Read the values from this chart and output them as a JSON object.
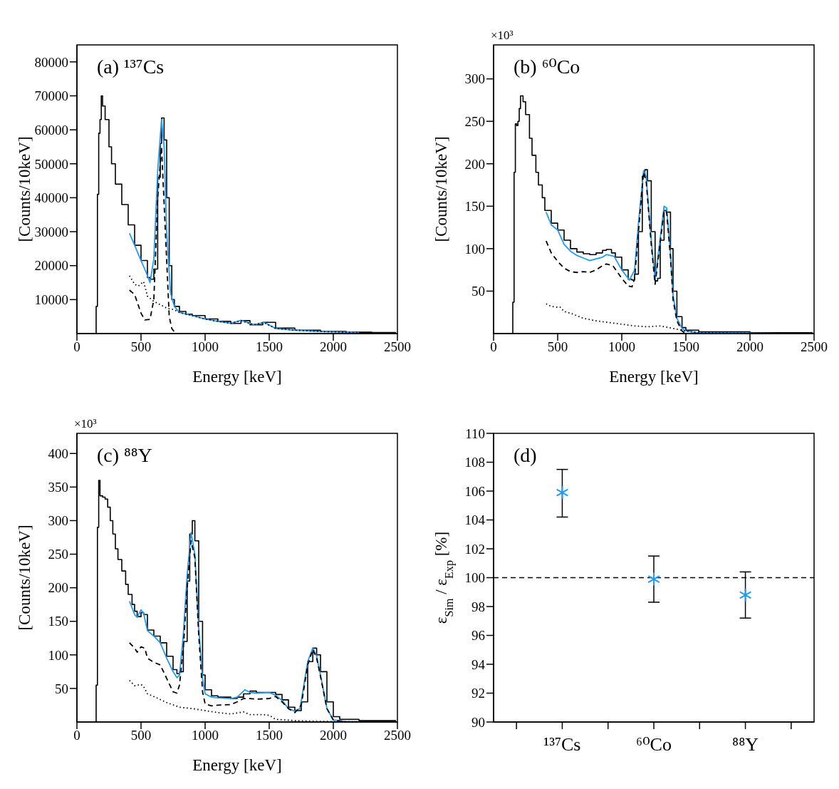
{
  "chart_data": [
    {
      "type": "line",
      "title": "(a) ¹³⁷Cs",
      "xlabel": "Energy  [keV]",
      "ylabel": "[Counts/10keV]",
      "xlim": [
        0,
        2500
      ],
      "xticks": [
        0,
        500,
        1000,
        1500,
        2000,
        2500
      ],
      "ylim": [
        0,
        85000
      ],
      "yticks": [
        10000,
        20000,
        30000,
        40000,
        50000,
        60000,
        70000,
        80000
      ],
      "grid": false,
      "series": [
        {
          "type": "step",
          "color": "#000000",
          "x": [
            140,
            150,
            160,
            170,
            180,
            190,
            200,
            220,
            250,
            270,
            300,
            350,
            400,
            450,
            500,
            550,
            570,
            600,
            630,
            650,
            660,
            680,
            700,
            720,
            740,
            760,
            800,
            850,
            900,
            1000,
            1100,
            1200,
            1280,
            1350,
            1450,
            1550,
            1700,
            1900,
            2100,
            2300,
            2490
          ],
          "values": [
            0,
            8000,
            41000,
            59000,
            63000,
            70000,
            67000,
            63000,
            55000,
            50000,
            44000,
            38000,
            32000,
            26000,
            21500,
            16500,
            16000,
            19000,
            46000,
            56000,
            63500,
            57000,
            40000,
            20000,
            10000,
            8000,
            6500,
            5700,
            5300,
            4300,
            3600,
            3000,
            3800,
            2600,
            3300,
            1600,
            1000,
            600,
            400,
            300,
            300
          ]
        },
        {
          "type": "line",
          "color": "#1f9bf0",
          "x": [
            410,
            450,
            500,
            540,
            570,
            600,
            630,
            660,
            680,
            700,
            730,
            760,
            800,
            900,
            1000,
            1100,
            1200,
            1280,
            1380,
            1460,
            1550,
            1700,
            1900,
            2200
          ],
          "values": [
            29500,
            26000,
            21500,
            18000,
            15000,
            22000,
            48000,
            63000,
            55000,
            30000,
            12000,
            8000,
            6200,
            5300,
            4300,
            3600,
            3000,
            3900,
            2600,
            3300,
            1500,
            1000,
            600,
            300
          ]
        },
        {
          "type": "line",
          "color": "#000000",
          "line_style": "dashed",
          "x": [
            410,
            450,
            500,
            530,
            570,
            600,
            630,
            660,
            690,
            720,
            740,
            770
          ],
          "values": [
            12800,
            11500,
            6000,
            4000,
            4200,
            10000,
            40000,
            55000,
            30000,
            5000,
            1500,
            0
          ]
        },
        {
          "type": "line",
          "color": "#000000",
          "line_style": "dotted",
          "x": [
            410,
            450,
            480,
            520,
            550,
            600,
            700,
            760,
            800,
            900,
            1000,
            1100,
            1200,
            1280,
            1380,
            1460,
            1550,
            1700,
            1900,
            2200
          ],
          "values": [
            17000,
            14500,
            14000,
            15300,
            11000,
            9500,
            7500,
            7000,
            6200,
            5300,
            4300,
            3600,
            3000,
            3800,
            2600,
            3200,
            1500,
            1000,
            600,
            300
          ]
        }
      ]
    },
    {
      "type": "line",
      "title": "(b) ⁶⁰Co",
      "annotations": [
        "×10³"
      ],
      "xlabel": "Energy  [keV]",
      "ylabel": "[Counts/10keV]",
      "xlim": [
        0,
        2500
      ],
      "xticks": [
        0,
        500,
        1000,
        1500,
        2000,
        2500
      ],
      "ylim": [
        0,
        340
      ],
      "yticks": [
        50,
        100,
        150,
        200,
        250,
        300
      ],
      "grid": false,
      "series": [
        {
          "type": "step",
          "color": "#000000",
          "x": [
            140,
            150,
            160,
            170,
            180,
            190,
            200,
            210,
            220,
            230,
            250,
            280,
            300,
            330,
            350,
            380,
            400,
            450,
            500,
            550,
            600,
            650,
            700,
            750,
            800,
            850,
            880,
            920,
            950,
            1000,
            1050,
            1080,
            1100,
            1130,
            1160,
            1180,
            1200,
            1230,
            1260,
            1280,
            1300,
            1330,
            1350,
            1380,
            1400,
            1430,
            1470,
            1500,
            1600,
            2000,
            2490
          ],
          "values": [
            0,
            37,
            190,
            247,
            245,
            250,
            265,
            280,
            280,
            273,
            258,
            230,
            210,
            190,
            175,
            160,
            145,
            130,
            122,
            110,
            100,
            96,
            94,
            93,
            95,
            98,
            99,
            95,
            90,
            75,
            64,
            63,
            70,
            120,
            185,
            193,
            180,
            120,
            62,
            65,
            110,
            145,
            143,
            100,
            50,
            20,
            7,
            4,
            2,
            1,
            1
          ]
        },
        {
          "type": "line",
          "color": "#1f9bf0",
          "x": [
            410,
            450,
            500,
            550,
            600,
            650,
            700,
            750,
            800,
            850,
            880,
            940,
            1000,
            1060,
            1100,
            1130,
            1170,
            1190,
            1230,
            1260,
            1290,
            1330,
            1350,
            1380,
            1400,
            1430,
            1470,
            1500,
            1600,
            2200
          ],
          "values": [
            143,
            128,
            122,
            105,
            97,
            92,
            89,
            86,
            88,
            90,
            93,
            91,
            75,
            63,
            75,
            130,
            192,
            185,
            110,
            64,
            100,
            150,
            148,
            95,
            45,
            18,
            6,
            3,
            1,
            0
          ]
        },
        {
          "type": "line",
          "color": "#000000",
          "line_style": "dashed",
          "x": [
            410,
            450,
            500,
            550,
            600,
            650,
            700,
            750,
            800,
            850,
            880,
            930,
            1000,
            1050,
            1080,
            1100,
            1130,
            1170,
            1190,
            1230,
            1260,
            1290,
            1330,
            1350,
            1380,
            1400,
            1430,
            1470,
            1500
          ],
          "values": [
            109,
            95,
            85,
            77,
            73,
            72,
            73,
            72,
            75,
            80,
            82,
            80,
            65,
            56,
            55,
            65,
            120,
            190,
            180,
            105,
            58,
            95,
            145,
            143,
            90,
            40,
            15,
            3,
            0
          ]
        },
        {
          "type": "line",
          "color": "#000000",
          "line_style": "dotted",
          "x": [
            410,
            450,
            500,
            520,
            550,
            600,
            700,
            800,
            900,
            1000,
            1100,
            1200,
            1300,
            1400,
            1500,
            1600,
            2200
          ],
          "values": [
            35,
            32,
            31,
            31,
            26,
            24,
            18,
            15,
            13,
            11,
            9,
            8,
            9,
            6,
            3,
            1,
            0
          ]
        }
      ]
    },
    {
      "type": "line",
      "title": "(c)  ⁸⁸Y",
      "annotations": [
        "×10³"
      ],
      "xlabel": "Energy  [keV]",
      "ylabel": "[Counts/10keV]",
      "xlim": [
        0,
        2500
      ],
      "xticks": [
        0,
        500,
        1000,
        1500,
        2000,
        2500
      ],
      "ylim": [
        0,
        430
      ],
      "yticks": [
        50,
        100,
        150,
        200,
        250,
        300,
        350,
        400
      ],
      "grid": false,
      "series": [
        {
          "type": "step",
          "color": "#000000",
          "x": [
            140,
            150,
            160,
            170,
            180,
            200,
            220,
            240,
            260,
            280,
            300,
            320,
            350,
            380,
            400,
            430,
            450,
            470,
            500,
            520,
            550,
            600,
            650,
            700,
            750,
            780,
            800,
            830,
            860,
            880,
            900,
            920,
            950,
            980,
            1000,
            1050,
            1100,
            1200,
            1250,
            1300,
            1350,
            1400,
            1500,
            1550,
            1600,
            1650,
            1700,
            1750,
            1800,
            1840,
            1870,
            1900,
            1950,
            2000,
            2050,
            2200,
            2490
          ],
          "values": [
            0,
            55,
            290,
            360,
            337,
            335,
            332,
            320,
            300,
            280,
            258,
            242,
            225,
            205,
            190,
            175,
            165,
            157,
            163,
            160,
            137,
            128,
            118,
            98,
            78,
            72,
            75,
            120,
            210,
            280,
            300,
            270,
            150,
            70,
            48,
            39,
            37,
            35,
            37,
            42,
            46,
            44,
            44,
            41,
            33,
            22,
            17,
            30,
            90,
            110,
            100,
            75,
            30,
            8,
            4,
            2,
            2
          ]
        },
        {
          "type": "line",
          "color": "#1f9bf0",
          "x": [
            410,
            450,
            470,
            500,
            520,
            550,
            600,
            650,
            700,
            750,
            780,
            800,
            830,
            860,
            890,
            920,
            950,
            980,
            1000,
            1050,
            1100,
            1200,
            1250,
            1310,
            1350,
            1400,
            1500,
            1550,
            1600,
            1650,
            1700,
            1740,
            1800,
            1840,
            1870,
            1900,
            1950,
            2000,
            2100,
            2200
          ],
          "values": [
            180,
            160,
            156,
            167,
            162,
            136,
            128,
            118,
            95,
            75,
            66,
            70,
            130,
            220,
            282,
            250,
            140,
            65,
            42,
            37,
            36,
            35,
            37,
            48,
            44,
            43,
            44,
            40,
            32,
            20,
            16,
            20,
            90,
            110,
            98,
            70,
            20,
            3,
            1,
            1
          ]
        },
        {
          "type": "line",
          "color": "#000000",
          "line_style": "dashed",
          "x": [
            410,
            450,
            470,
            500,
            530,
            550,
            600,
            650,
            700,
            750,
            780,
            800,
            830,
            860,
            890,
            920,
            950,
            980,
            1000,
            1050,
            1100,
            1200,
            1250,
            1300,
            1350,
            1400,
            1500,
            1550,
            1600,
            1650,
            1700,
            1750,
            1800,
            1840,
            1870,
            1900,
            1950,
            2000,
            2100
          ],
          "values": [
            118,
            110,
            104,
            112,
            110,
            95,
            89,
            85,
            65,
            45,
            43,
            55,
            110,
            200,
            270,
            245,
            130,
            45,
            27,
            24,
            25,
            26,
            30,
            35,
            35,
            34,
            35,
            38,
            30,
            20,
            14,
            25,
            85,
            108,
            95,
            68,
            20,
            3,
            0
          ]
        },
        {
          "type": "line",
          "color": "#000000",
          "line_style": "dotted",
          "x": [
            410,
            450,
            500,
            520,
            550,
            600,
            700,
            800,
            900,
            1000,
            1100,
            1200,
            1300,
            1350,
            1450,
            1500,
            1550,
            1700,
            1900,
            2200
          ],
          "values": [
            62,
            54,
            56,
            53,
            42,
            38,
            29,
            22,
            20,
            17,
            14,
            12,
            15,
            11,
            11,
            10,
            4,
            2,
            1,
            0
          ]
        }
      ]
    },
    {
      "type": "scatter",
      "title": "(d)",
      "ylabel": "ε$_{Sim}$ / ε$_{Exp}$  [%]",
      "categories": [
        "¹³⁷Cs",
        "⁶⁰Co",
        "⁸⁸Y"
      ],
      "values": [
        105.9,
        99.9,
        98.8
      ],
      "errors": [
        [
          104.2,
          107.5
        ],
        [
          98.3,
          101.5
        ],
        [
          97.2,
          100.4
        ]
      ],
      "color": "#1f9bf0",
      "marker": "cross",
      "ylim": [
        90,
        110
      ],
      "yticks": [
        90,
        92,
        94,
        96,
        98,
        100,
        102,
        104,
        106,
        108,
        110
      ],
      "grid": false,
      "ref_lines": [
        {
          "axis": "y",
          "value": 100,
          "color": "#000000",
          "line_style": "dashed"
        }
      ]
    }
  ]
}
